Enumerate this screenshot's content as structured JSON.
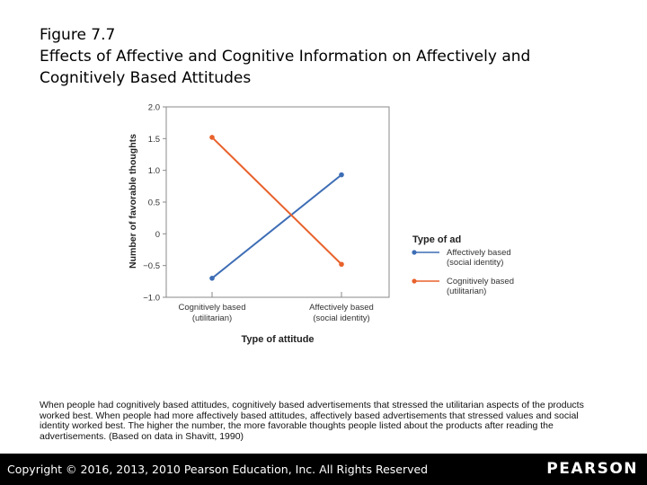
{
  "figure": {
    "label": "Figure 7.7",
    "title_line1": "Effects of Affective and Cognitive Information on Affectively and",
    "title_line2": "Cognitively Based Attitudes"
  },
  "chart_data": {
    "type": "line",
    "categories": [
      "Cognitively based (utilitarian)",
      "Affectively based (social identity)"
    ],
    "category_lines": [
      [
        "Cognitively based",
        "(utilitarian)"
      ],
      [
        "Affectively based",
        "(social identity)"
      ]
    ],
    "series": [
      {
        "name": "Affectively based (social identity)",
        "name_lines": [
          "Affectively based",
          "(social identity)"
        ],
        "color": "#3d6db5",
        "values": [
          -0.7,
          0.93
        ]
      },
      {
        "name": "Cognitively based (utilitarian)",
        "name_lines": [
          "Cognitively based",
          "(utilitarian)"
        ],
        "color": "#e8622c",
        "values": [
          1.52,
          -0.48
        ]
      }
    ],
    "xlabel": "Type of attitude",
    "ylabel": "Number of favorable thoughts",
    "ylim": [
      -1.0,
      2.0
    ],
    "yticks": [
      2.0,
      1.5,
      1.0,
      0.5,
      0,
      -0.5,
      -1.0
    ],
    "ytick_labels": [
      "2.0",
      "1.5",
      "1.0",
      "0.5",
      "0",
      "−0.5",
      "−1.0"
    ],
    "legend_title": "Type of ad",
    "legend_position": "right"
  },
  "caption": "When people had cognitively based attitudes, cognitively based advertisements that stressed the utilitarian aspects of the products worked best. When people had more affectively based attitudes, affectively based advertisements that stressed values and social identity worked best. The higher the number, the more favorable thoughts people listed about the products after reading the advertisements. (Based on data in Shavitt, 1990)",
  "footer": {
    "copyright": "Copyright © 2016, 2013, 2010 Pearson Education, Inc. All Rights Reserved",
    "brand": "PEARSON"
  }
}
